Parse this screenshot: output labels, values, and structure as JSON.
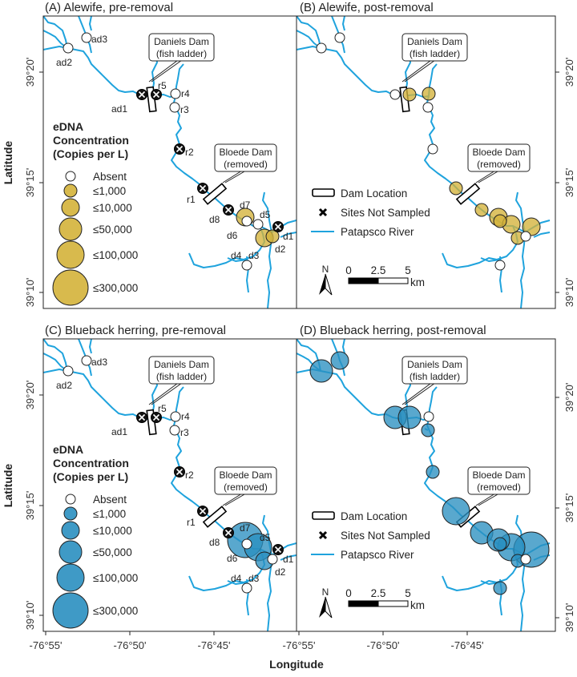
{
  "colors": {
    "alewife": "#d4b23a",
    "blueback": "#2a8fc0",
    "river": "#1fa3dd",
    "absent": "#ffffff"
  },
  "axes": {
    "xlabel": "Longitude",
    "ylabel": "Latitude",
    "lon_ticks": [
      "-76°55'",
      "-76°50'",
      "-76°45'"
    ],
    "lat_ticks": [
      "39°20'",
      "39°15'",
      "39°10'"
    ]
  },
  "callouts": {
    "daniels": [
      "Daniels Dam",
      "(fish ladder)"
    ],
    "bloede": [
      "Bloede Dam",
      "(removed)"
    ]
  },
  "size_legend": {
    "title": [
      "eDNA",
      "Concentration",
      "(Copies per L)"
    ],
    "items": [
      {
        "key": "absent",
        "label": "Absent"
      },
      {
        "key": "le1000",
        "label": "≤1,000"
      },
      {
        "key": "le10000",
        "label": "≤10,000"
      },
      {
        "key": "le50000",
        "label": "≤50,000"
      },
      {
        "key": "le100000",
        "label": "≤100,000"
      },
      {
        "key": "le300000",
        "label": "≤300,000"
      }
    ]
  },
  "map_legend": {
    "dam": "Dam Location",
    "not_sampled": "Sites Not Sampled",
    "river": "Patapsco River",
    "north": "N",
    "scale": [
      "0",
      "2.5",
      "5"
    ],
    "scale_unit": "km"
  },
  "panels": [
    {
      "title": "(A) Alewife, pre-removal",
      "species": "alewife",
      "show_labels": true,
      "legend": "size",
      "sites": {
        "ad3": "absent",
        "ad2": "absent",
        "ad1": "not_sampled",
        "r5": "not_sampled",
        "r4": "absent",
        "r3": "absent",
        "r2": "not_sampled",
        "r1": "not_sampled",
        "d8": "not_sampled",
        "d7": "le10000",
        "d6": "absent",
        "d5": "absent",
        "d1": "not_sampled",
        "d3": "le10000",
        "d2": "le1000",
        "d4": "absent"
      }
    },
    {
      "title": "(B) Alewife, post-removal",
      "species": "alewife",
      "show_labels": false,
      "legend": "map",
      "sites": {
        "ad3": "absent",
        "ad2": "absent",
        "ad1": "absent",
        "r5": "le1000",
        "r4": "le1000",
        "r3": "absent",
        "r2": "absent",
        "r1": "le1000",
        "d8": "le1000",
        "d7": "le10000",
        "d6": "le1000",
        "d5": "le10000",
        "d1": "le10000",
        "d3": "le1000",
        "d2": "absent",
        "d4": "absent"
      }
    },
    {
      "title": "(C) Blueback herring, pre-removal",
      "species": "blueback",
      "show_labels": true,
      "legend": "size",
      "sites": {
        "ad3": "absent",
        "ad2": "absent",
        "ad1": "not_sampled",
        "r5": "not_sampled",
        "r4": "absent",
        "r3": "absent",
        "r2": "not_sampled",
        "r1": "not_sampled",
        "d8": "not_sampled",
        "d7": "le300000",
        "d5": "le100000",
        "d6": "absent",
        "d1": "not_sampled",
        "d3": "le10000",
        "d2": "absent",
        "d4": "absent"
      }
    },
    {
      "title": "(D) Blueback herring, post-removal",
      "species": "blueback",
      "show_labels": false,
      "legend": "map",
      "sites": {
        "ad3": "le10000",
        "ad2": "le50000",
        "ad1": "le50000",
        "r5": "le50000",
        "r4": "absent",
        "r3": "le1000",
        "r2": "le1000",
        "r1": "le100000",
        "d8": "le50000",
        "d7": "le50000",
        "d5": "le100000",
        "d1": "le300000",
        "d6": "le1000",
        "d3": "le1000",
        "d2": "absent",
        "d4": "le1000"
      }
    }
  ]
}
